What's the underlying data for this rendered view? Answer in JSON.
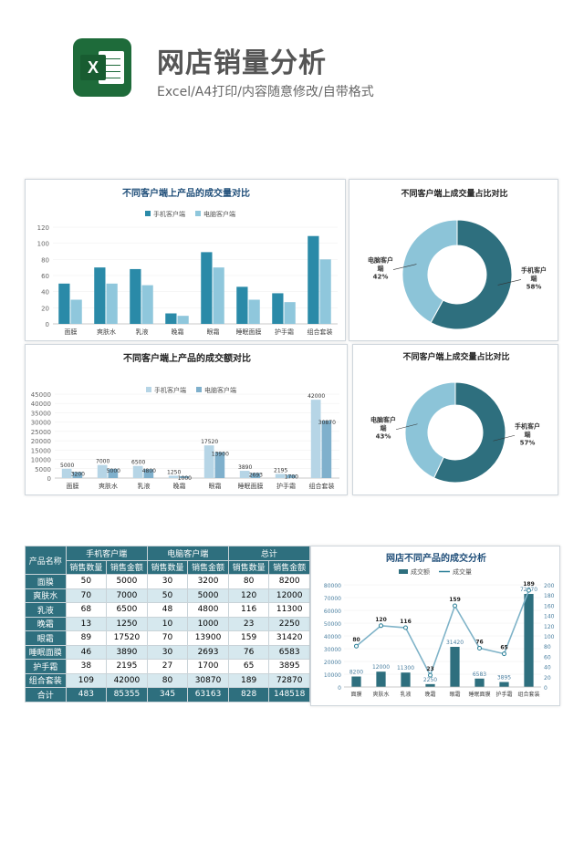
{
  "header": {
    "title": "网店销量分析",
    "subtitle": "Excel/A4打印/内容随意修改/自带格式",
    "icon": "excel-icon"
  },
  "colors": {
    "dark": "#2e6f7e",
    "light": "#8cc4d8",
    "teal": "#2a7f97"
  },
  "chart_data": [
    {
      "type": "bar",
      "title": "不同客户端上产品的成交量对比",
      "categories": [
        "面膜",
        "爽肤水",
        "乳液",
        "晚霜",
        "眼霜",
        "睡眠面膜",
        "护手霜",
        "组合套装"
      ],
      "series": [
        {
          "name": "手机客户端",
          "values": [
            50,
            70,
            68,
            13,
            89,
            46,
            38,
            109
          ]
        },
        {
          "name": "电脑客户端",
          "values": [
            30,
            50,
            48,
            10,
            70,
            30,
            27,
            80
          ]
        }
      ],
      "ylim": [
        0,
        120
      ],
      "yticks": [
        "0",
        "20",
        "40",
        "60",
        "80",
        "100",
        "120"
      ],
      "legend": "top"
    },
    {
      "type": "pie",
      "title": "不同客户端上成交量占比对比",
      "slices": [
        {
          "name": "手机客户端",
          "value": 58,
          "label": "58%"
        },
        {
          "name": "电脑客户端",
          "value": 42,
          "label": "42%"
        }
      ]
    },
    {
      "type": "bar",
      "title": "不同客户端上产品的成交额对比",
      "categories": [
        "面膜",
        "爽肤水",
        "乳液",
        "晚霜",
        "眼霜",
        "睡眠面膜",
        "护手霜",
        "组合套装"
      ],
      "series": [
        {
          "name": "手机客户端",
          "values": [
            5000,
            7000,
            6500,
            1250,
            17520,
            3890,
            2195,
            42000
          ]
        },
        {
          "name": "电脑客户端",
          "values": [
            3200,
            5000,
            4800,
            1000,
            13900,
            2693,
            1700,
            30870
          ]
        }
      ],
      "ylim": [
        0,
        45000
      ],
      "yticks": [
        "0",
        "5000",
        "10000",
        "15000",
        "20000",
        "25000",
        "30000",
        "35000",
        "40000",
        "45000"
      ],
      "legend": "top"
    },
    {
      "type": "pie",
      "title": "不同客户端上成交量占比对比",
      "slices": [
        {
          "name": "手机客户端",
          "value": 57,
          "label": "57%"
        },
        {
          "name": "电脑客户端",
          "value": 43,
          "label": "43%"
        }
      ]
    },
    {
      "type": "bar+line",
      "title": "网店不同产品的成交分析",
      "categories": [
        "面膜",
        "爽肤水",
        "乳液",
        "晚霜",
        "眼霜",
        "睡眠面膜",
        "护手霜",
        "组合套装"
      ],
      "series": [
        {
          "name": "成交额",
          "type": "bar",
          "values": [
            8200,
            12000,
            11300,
            2250,
            31420,
            6583,
            3895,
            72870
          ]
        },
        {
          "name": "成交量",
          "type": "line",
          "values": [
            80,
            120,
            116,
            23,
            159,
            76,
            65,
            189
          ]
        }
      ],
      "ylim": [
        0,
        80000
      ],
      "y2lim": [
        0,
        200
      ],
      "yticks": [
        "0",
        "10000",
        "20000",
        "30000",
        "40000",
        "50000",
        "60000",
        "70000",
        "80000"
      ],
      "y2ticks": [
        "0",
        "20",
        "40",
        "60",
        "80",
        "100",
        "120",
        "140",
        "160",
        "180",
        "200"
      ]
    }
  ],
  "table": {
    "group_headers": [
      "产品名称",
      "手机客户端",
      "电脑客户端",
      "总计"
    ],
    "sub_headers": [
      "销售数量",
      "销售金额",
      "销售数量",
      "销售金额",
      "销售数量",
      "销售金额"
    ],
    "rows": [
      [
        "面膜",
        "50",
        "5000",
        "30",
        "3200",
        "80",
        "8200"
      ],
      [
        "爽肤水",
        "70",
        "7000",
        "50",
        "5000",
        "120",
        "12000"
      ],
      [
        "乳液",
        "68",
        "6500",
        "48",
        "4800",
        "116",
        "11300"
      ],
      [
        "晚霜",
        "13",
        "1250",
        "10",
        "1000",
        "23",
        "2250"
      ],
      [
        "眼霜",
        "89",
        "17520",
        "70",
        "13900",
        "159",
        "31420"
      ],
      [
        "睡眠面膜",
        "46",
        "3890",
        "30",
        "2693",
        "76",
        "6583"
      ],
      [
        "护手霜",
        "38",
        "2195",
        "27",
        "1700",
        "65",
        "3895"
      ],
      [
        "组合套装",
        "109",
        "42000",
        "80",
        "30870",
        "189",
        "72870"
      ]
    ],
    "total": [
      "合计",
      "483",
      "85355",
      "345",
      "63163",
      "828",
      "148518"
    ]
  }
}
